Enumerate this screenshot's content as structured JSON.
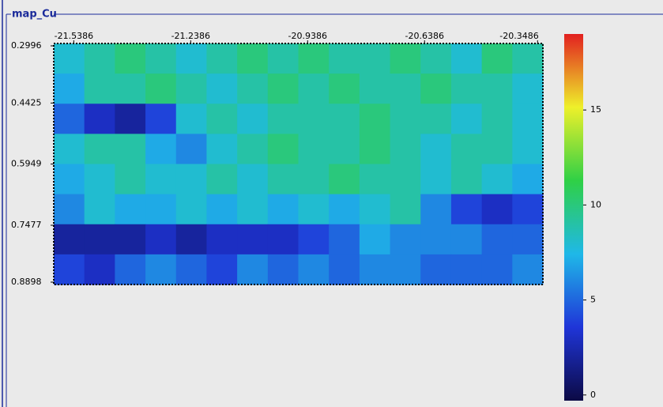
{
  "panel_title": "map_Cu",
  "chart_data": {
    "type": "heatmap",
    "xlim": [
      -21.59,
      -20.335
    ],
    "xticks": [
      -21.5386,
      -21.2386,
      -20.9386,
      -20.6386,
      -20.3486
    ],
    "ylim": [
      0.2937,
      0.8957
    ],
    "yticks": [
      0.2996,
      0.4425,
      0.5949,
      0.7477,
      0.8898
    ],
    "clim": [
      -0.3,
      19
    ],
    "cticks": [
      0,
      5,
      10,
      15
    ],
    "colormap": [
      "#0c0a45",
      "#1f35d8",
      "#1fb8e8",
      "#2fd046",
      "#eef02a",
      "#e22020"
    ],
    "z": [
      [
        8,
        9,
        10,
        9,
        8,
        9,
        10,
        9,
        10,
        9,
        9,
        10,
        9,
        8,
        10,
        9
      ],
      [
        7,
        9,
        9,
        10,
        9,
        8,
        9,
        10,
        9,
        10,
        9,
        9,
        10,
        9,
        9,
        8
      ],
      [
        5,
        3,
        2,
        4,
        8,
        9,
        8,
        9,
        9,
        9,
        10,
        9,
        9,
        8,
        9,
        8
      ],
      [
        8,
        9,
        9,
        7,
        6,
        8,
        9,
        10,
        9,
        9,
        10,
        9,
        8,
        9,
        9,
        8
      ],
      [
        7,
        8,
        9,
        8,
        8,
        9,
        8,
        9,
        9,
        10,
        9,
        9,
        8,
        9,
        8,
        7
      ],
      [
        6,
        8,
        7,
        7,
        8,
        7,
        8,
        7,
        8,
        7,
        8,
        9,
        6,
        4,
        3,
        4
      ],
      [
        2,
        2,
        2,
        3,
        2,
        3,
        3,
        3,
        4,
        5,
        7,
        6,
        6,
        6,
        5,
        5
      ],
      [
        4,
        3,
        5,
        6,
        5,
        4,
        6,
        5,
        6,
        5,
        6,
        6,
        5,
        5,
        5,
        6
      ]
    ]
  }
}
